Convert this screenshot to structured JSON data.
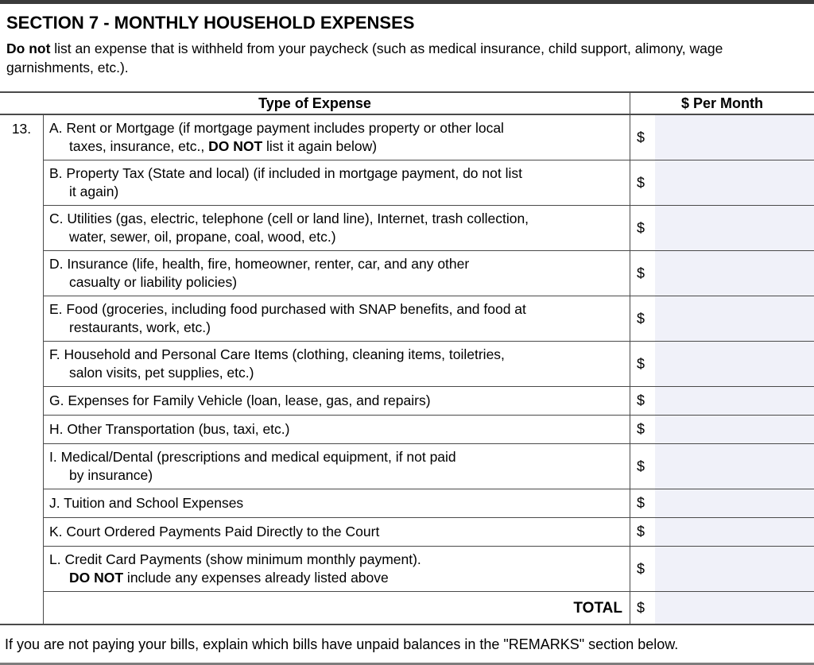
{
  "header": {
    "title": "SECTION 7 - MONTHLY HOUSEHOLD EXPENSES",
    "intro_bold": "Do not",
    "intro_rest": " list an expense that is withheld from your paycheck (such as medical insurance, child support, alimony, wage garnishments, etc.)."
  },
  "table": {
    "item_number": "13.",
    "col_expense": "Type of Expense",
    "col_amount": "$ Per Month",
    "currency": "$",
    "total_label": "TOTAL",
    "total_value": "",
    "rows": [
      {
        "id": "A",
        "value": "",
        "lines": [
          [
            "A. Rent or Mortgage (if mortgage payment includes property or other local"
          ],
          [
            "taxes, insurance, etc., ",
            {
              "b": "DO NOT"
            },
            " list it again below)"
          ]
        ]
      },
      {
        "id": "B",
        "value": "",
        "lines": [
          [
            "B. Property Tax (State and local) (if included in mortgage payment, do not list"
          ],
          [
            "it again)"
          ]
        ]
      },
      {
        "id": "C",
        "value": "",
        "lines": [
          [
            "C. Utilities (gas, electric, telephone (cell or land line), Internet, trash collection,"
          ],
          [
            "water, sewer, oil, propane, coal, wood, etc.)"
          ]
        ]
      },
      {
        "id": "D",
        "value": "",
        "lines": [
          [
            "D. Insurance (life, health, fire, homeowner, renter, car, and any other"
          ],
          [
            "casualty or liability policies)"
          ]
        ]
      },
      {
        "id": "E",
        "value": "",
        "lines": [
          [
            "E. Food (groceries, including food purchased with SNAP benefits, and food at"
          ],
          [
            "restaurants, work, etc.)"
          ]
        ]
      },
      {
        "id": "F",
        "value": "",
        "lines": [
          [
            "F. Household and Personal Care Items (clothing, cleaning items, toiletries,"
          ],
          [
            "salon visits, pet supplies, etc.)"
          ]
        ]
      },
      {
        "id": "G",
        "value": "",
        "lines": [
          [
            "G. Expenses for Family Vehicle (loan, lease, gas, and repairs)"
          ]
        ]
      },
      {
        "id": "H",
        "value": "",
        "lines": [
          [
            "H. Other Transportation (bus, taxi, etc.)"
          ]
        ]
      },
      {
        "id": "I",
        "value": "",
        "lines": [
          [
            "I. Medical/Dental (prescriptions and medical equipment, if not paid"
          ],
          [
            "by insurance)"
          ]
        ]
      },
      {
        "id": "J",
        "value": "",
        "lines": [
          [
            "J. Tuition and School Expenses"
          ]
        ]
      },
      {
        "id": "K",
        "value": "",
        "lines": [
          [
            "K. Court Ordered Payments Paid Directly to the Court"
          ]
        ]
      },
      {
        "id": "L",
        "value": "",
        "lines": [
          [
            "L. Credit Card Payments (show minimum monthly payment)."
          ],
          [
            {
              "b": "DO NOT"
            },
            " include any expenses already listed above"
          ]
        ]
      }
    ]
  },
  "footer": {
    "note": "If you are not paying your bills, explain which bills have unpaid balances in the \"REMARKS\" section below."
  },
  "colors": {
    "field_bg": "#f0f1f9",
    "table_line": "#4a4a4a",
    "top_bar": "#3b3b3b",
    "bottom_rule": "#7d7d7d"
  }
}
